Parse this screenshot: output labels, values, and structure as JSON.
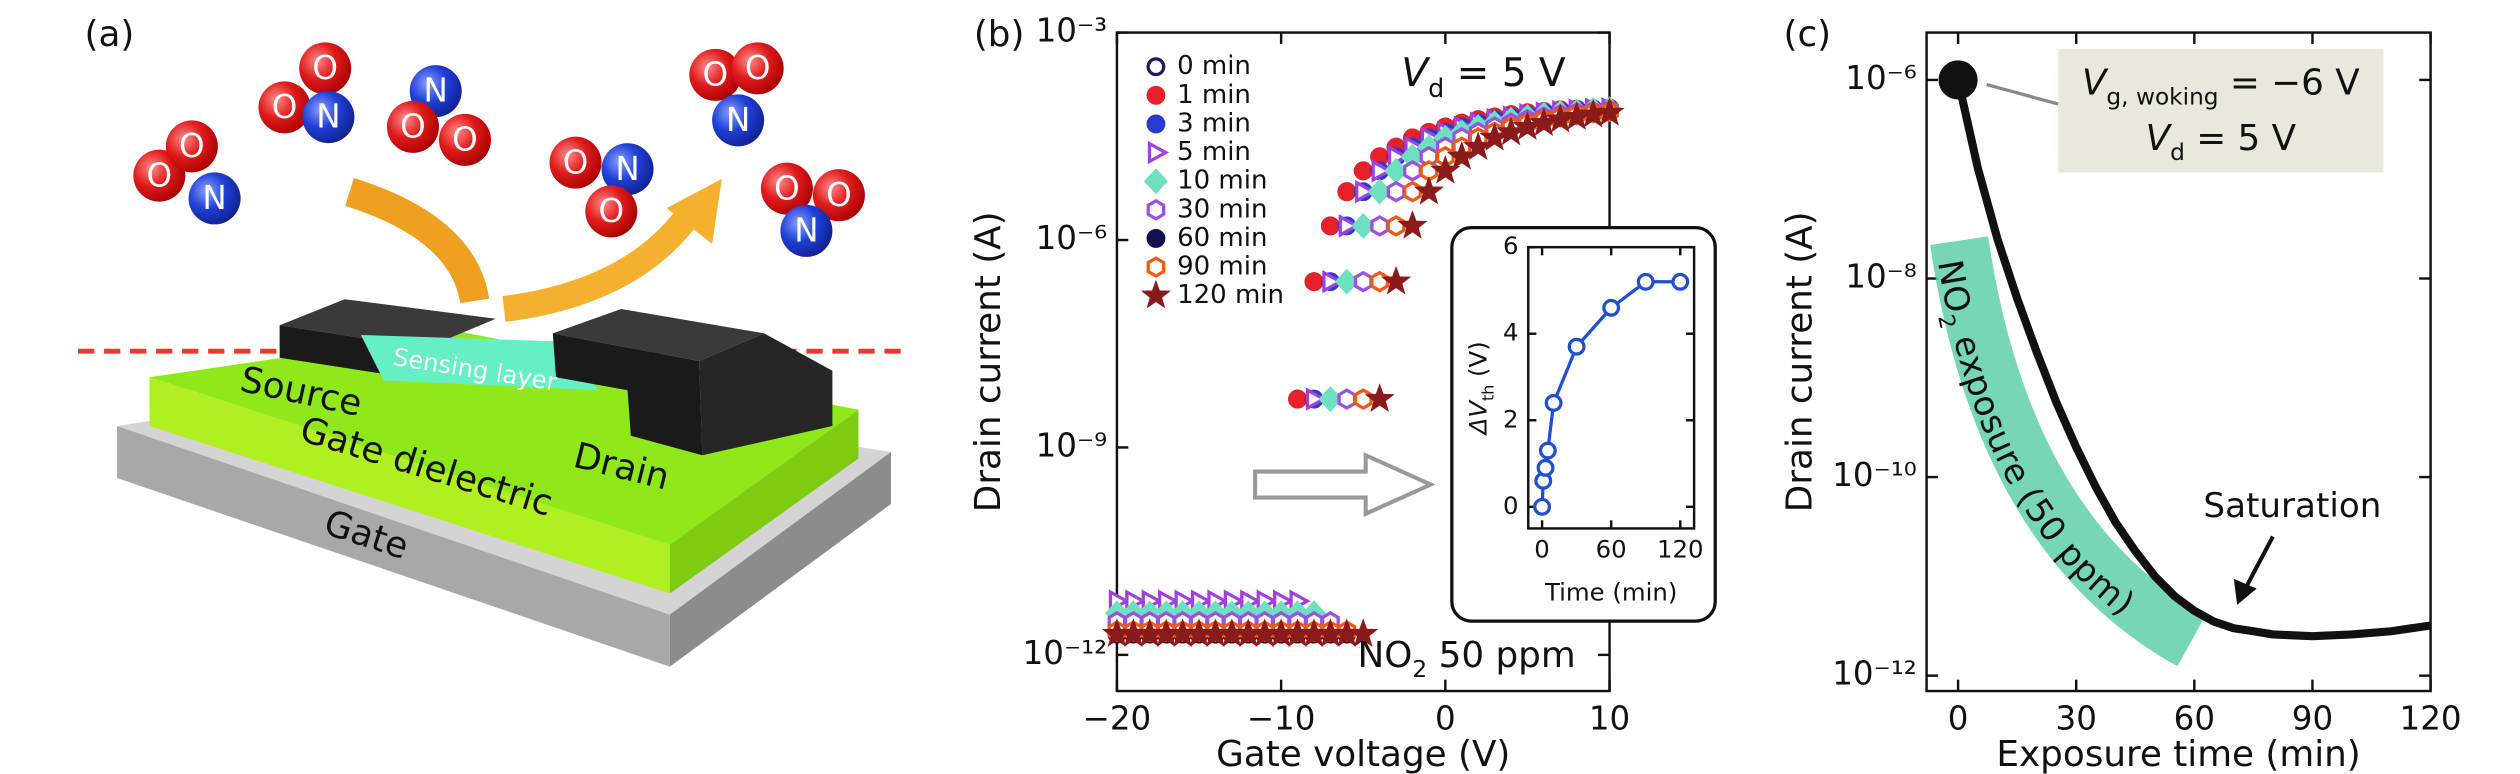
{
  "diagram": {
    "panel_label": "(a)",
    "source": "Source",
    "drain": "Drain",
    "gate_dielectric": "Gate dielectric",
    "gate": "Gate",
    "sensing_layer": "Sensing layer",
    "atoms": {
      "oxygen": "O",
      "nitrogen": "N"
    }
  },
  "chart_data": [
    {
      "type": "scatter",
      "panel_label": "(b)",
      "x_label": "Gate voltage (V)",
      "y_label": "Drain current (A)",
      "ylog": true,
      "annotations": {
        "vd": [
          "V",
          "d",
          " = 5 V"
        ],
        "gas": [
          "NO",
          "2",
          " 50 ppm"
        ]
      },
      "xlim": [
        -20,
        10
      ],
      "xticks": [
        {
          "value": -20,
          "label": "−20"
        },
        {
          "value": -10,
          "label": "−10"
        },
        0,
        10
      ],
      "ylim": [
        3e-13,
        0.001
      ],
      "yticks": [
        {
          "value": 1e-12,
          "label": "10⁻¹²"
        },
        {
          "value": 1e-09,
          "label": "10⁻⁹"
        },
        {
          "value": 1e-06,
          "label": "10⁻⁶"
        },
        {
          "value": 0.001,
          "label": "10⁻³"
        }
      ],
      "x": [
        -20,
        -19,
        -18,
        -17,
        -16,
        -15,
        -14,
        -13,
        -12,
        -11,
        -10,
        -9,
        -8,
        -7,
        -6,
        -5,
        -4,
        -3,
        -2,
        -1,
        0,
        1,
        2,
        3,
        4,
        5,
        6,
        7,
        8,
        9,
        10
      ],
      "series": [
        {
          "name": "0 min",
          "color": "#1c1c5c",
          "marker": "circle",
          "filled": false,
          "values": [
            2.5e-12,
            2.5e-12,
            2.5e-12,
            2.5e-12,
            2.5e-12,
            2.5e-12,
            2.5e-12,
            2.5e-12,
            2.5e-12,
            2.5e-12,
            2.5e-12,
            5e-09,
            2.5e-07,
            1.6e-06,
            5e-06,
            1e-05,
            1.6e-05,
            2.2e-05,
            3e-05,
            3.6e-05,
            4.3e-05,
            4.9e-05,
            5.5e-05,
            6e-05,
            6.5e-05,
            6.9e-05,
            7.2e-05,
            7.6e-05,
            7.8e-05,
            7.9e-05,
            8.1e-05
          ]
        },
        {
          "name": "1 min",
          "color": "#e8202a",
          "marker": "circle",
          "filled": true,
          "values": [
            2.2e-12,
            2.2e-12,
            2.2e-12,
            2.2e-12,
            2.2e-12,
            2.2e-12,
            2.2e-12,
            2.2e-12,
            2.2e-12,
            2.2e-12,
            2.2e-12,
            5e-09,
            2.5e-07,
            1.6e-06,
            5e-06,
            1e-05,
            1.6e-05,
            2.2e-05,
            3e-05,
            3.6e-05,
            4.3e-05,
            4.9e-05,
            5.5e-05,
            6e-05,
            6.5e-05,
            6.9e-05,
            7.2e-05,
            7.6e-05,
            7.8e-05,
            7.9e-05,
            8.1e-05
          ]
        },
        {
          "name": "3 min",
          "color": "#2a3ad0",
          "marker": "circle",
          "filled": true,
          "values": [
            2.8e-12,
            2.8e-12,
            2.8e-12,
            2.8e-12,
            2.8e-12,
            2.8e-12,
            2.8e-12,
            2.8e-12,
            2.8e-12,
            2.8e-12,
            2.8e-12,
            2.8e-12,
            5e-09,
            2.5e-07,
            1.6e-06,
            5e-06,
            1e-05,
            1.6e-05,
            2.2e-05,
            3e-05,
            3.6e-05,
            4.3e-05,
            4.9e-05,
            5.5e-05,
            6e-05,
            6.5e-05,
            6.9e-05,
            7.2e-05,
            7.6e-05,
            7.8e-05,
            7.9e-05
          ]
        },
        {
          "name": "5 min",
          "color": "#a040e0",
          "marker": "triangle",
          "filled": false,
          "values": [
            6e-12,
            6e-12,
            6e-12,
            6e-12,
            6e-12,
            6e-12,
            6e-12,
            6e-12,
            6e-12,
            6e-12,
            6e-12,
            6e-12,
            5e-09,
            2.5e-07,
            1.6e-06,
            5e-06,
            1e-05,
            1.6e-05,
            2.2e-05,
            3e-05,
            3.6e-05,
            4.3e-05,
            4.9e-05,
            5.5e-05,
            6e-05,
            6.5e-05,
            6.9e-05,
            7.2e-05,
            7.6e-05,
            7.8e-05,
            7.9e-05
          ]
        },
        {
          "name": "10 min",
          "color": "#6fe0bf",
          "marker": "diamond",
          "filled": true,
          "values": [
            4e-12,
            4e-12,
            4e-12,
            4e-12,
            4e-12,
            4e-12,
            4e-12,
            4e-12,
            4e-12,
            4e-12,
            4e-12,
            4e-12,
            4e-12,
            5e-09,
            2.5e-07,
            1.6e-06,
            5e-06,
            1e-05,
            1.6e-05,
            2.2e-05,
            3e-05,
            3.6e-05,
            4.3e-05,
            4.9e-05,
            5.5e-05,
            6e-05,
            6.5e-05,
            6.9e-05,
            7.2e-05,
            7.6e-05,
            7.8e-05
          ]
        },
        {
          "name": "30 min",
          "color": "#9a50e0",
          "marker": "hexagon",
          "filled": false,
          "values": [
            3e-12,
            3e-12,
            3e-12,
            3e-12,
            3e-12,
            3e-12,
            3e-12,
            3e-12,
            3e-12,
            3e-12,
            3e-12,
            3e-12,
            3e-12,
            3e-12,
            5e-09,
            2.5e-07,
            1.6e-06,
            5e-06,
            1e-05,
            1.6e-05,
            2.2e-05,
            3e-05,
            3.6e-05,
            4.3e-05,
            4.9e-05,
            5.5e-05,
            6e-05,
            6.5e-05,
            6.9e-05,
            7.2e-05,
            7.6e-05
          ]
        },
        {
          "name": "60 min",
          "color": "#101050",
          "marker": "circle",
          "filled": true,
          "values": [
            2e-12,
            2e-12,
            2e-12,
            2e-12,
            2e-12,
            2e-12,
            2e-12,
            2e-12,
            2e-12,
            2e-12,
            2e-12,
            2e-12,
            2e-12,
            2e-12,
            2e-12,
            5e-09,
            2.5e-07,
            1.6e-06,
            5e-06,
            1e-05,
            1.6e-05,
            2.2e-05,
            3e-05,
            3.6e-05,
            4.3e-05,
            4.9e-05,
            5.5e-05,
            6e-05,
            6.5e-05,
            6.9e-05,
            7.2e-05
          ]
        },
        {
          "name": "90 min",
          "color": "#f05a10",
          "marker": "hexagon",
          "filled": false,
          "values": [
            2.2e-12,
            2.2e-12,
            2.2e-12,
            2.2e-12,
            2.2e-12,
            2.2e-12,
            2.2e-12,
            2.2e-12,
            2.2e-12,
            2.2e-12,
            2.2e-12,
            2.2e-12,
            2.2e-12,
            2.2e-12,
            2.2e-12,
            5e-09,
            2.5e-07,
            1.6e-06,
            5e-06,
            1e-05,
            1.6e-05,
            2.2e-05,
            3e-05,
            3.6e-05,
            4.3e-05,
            4.9e-05,
            5.5e-05,
            6e-05,
            6.5e-05,
            6.9e-05,
            7.2e-05
          ]
        },
        {
          "name": "120 min",
          "color": "#8b1a1a",
          "marker": "star",
          "filled": true,
          "values": [
            2e-12,
            2e-12,
            2e-12,
            2e-12,
            2e-12,
            2e-12,
            2e-12,
            2e-12,
            2e-12,
            2e-12,
            2e-12,
            2e-12,
            2e-12,
            2e-12,
            2e-12,
            2e-12,
            5e-09,
            2.5e-07,
            1.6e-06,
            5e-06,
            1e-05,
            1.6e-05,
            2.2e-05,
            3e-05,
            3.6e-05,
            4.3e-05,
            4.9e-05,
            5.5e-05,
            6e-05,
            6.5e-05,
            6.9e-05
          ]
        }
      ]
    },
    {
      "type": "line",
      "x_label": "Time (min)",
      "y_label": [
        "ΔV",
        "th",
        " (V)"
      ],
      "color": "#1f4fd0",
      "xlim": [
        -12,
        132
      ],
      "xticks": [
        0,
        60,
        120
      ],
      "ylim": [
        -0.5,
        6
      ],
      "yticks": [
        0,
        2,
        4,
        6
      ],
      "x": [
        0,
        1,
        3,
        5,
        10,
        30,
        60,
        90,
        120
      ],
      "values": [
        0,
        0.6,
        0.9,
        1.3,
        2.4,
        3.7,
        4.6,
        5.2,
        5.2
      ]
    },
    {
      "type": "line",
      "panel_label": "(c)",
      "x_label": "Exposure time (min)",
      "y_label": "Drain current (A)",
      "ylog": true,
      "color": "#111111",
      "annotations": {
        "vg": [
          "V",
          "g, woking",
          " = −6 V"
        ],
        "vd": [
          "V",
          "d",
          " = 5 V"
        ],
        "saturation": "Saturation",
        "exposure": [
          "NO",
          "2",
          " exposure (50 ppm)"
        ]
      },
      "xlim": [
        -8,
        120
      ],
      "xticks": [
        0,
        30,
        60,
        90,
        120
      ],
      "ylim": [
        7e-13,
        3e-06
      ],
      "yticks": [
        {
          "value": 1e-12,
          "label": "10⁻¹²"
        },
        {
          "value": 1e-10,
          "label": "10⁻¹⁰"
        },
        {
          "value": 1e-08,
          "label": "10⁻⁸"
        },
        {
          "value": 1e-06,
          "label": "10⁻⁶"
        }
      ],
      "x": [
        0,
        5,
        10,
        15,
        20,
        25,
        30,
        35,
        40,
        45,
        50,
        55,
        60,
        65,
        70,
        75,
        80,
        90,
        100,
        110,
        120
      ],
      "values": [
        1e-06,
        1.3e-07,
        2.5e-08,
        6.3e-09,
        1.8e-09,
        5.6e-10,
        2e-10,
        7.9e-11,
        3.5e-11,
        1.8e-11,
        1e-11,
        6.3e-12,
        4.5e-12,
        3.5e-12,
        3e-12,
        2.8e-12,
        2.6e-12,
        2.5e-12,
        2.6e-12,
        2.8e-12,
        3.2e-12
      ]
    }
  ]
}
